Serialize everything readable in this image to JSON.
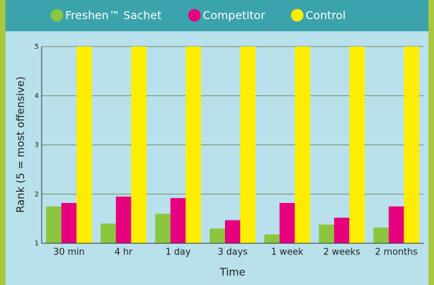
{
  "chart_data": {
    "type": "bar",
    "categories": [
      "30 min",
      "4 hr",
      "1 day",
      "3 days",
      "1 week",
      "2 weeks",
      "2 months"
    ],
    "series": [
      {
        "name": "Freshen™ Sachet",
        "color": "#8cc63f",
        "values": [
          1.75,
          1.4,
          1.6,
          1.3,
          1.18,
          1.38,
          1.32
        ]
      },
      {
        "name": "Competitor",
        "color": "#e6007e",
        "values": [
          1.82,
          1.95,
          1.92,
          1.47,
          1.82,
          1.52,
          1.75
        ]
      },
      {
        "name": "Control",
        "color": "#ffed00",
        "values": [
          5,
          5,
          5,
          5,
          5,
          5,
          5
        ]
      }
    ],
    "y_label": "Rank (5 = most offensive)",
    "x_label": "Time",
    "ylim": [
      1,
      5
    ],
    "yticks": [
      1,
      2,
      3,
      4,
      5
    ],
    "grid": true,
    "legend": "top"
  }
}
